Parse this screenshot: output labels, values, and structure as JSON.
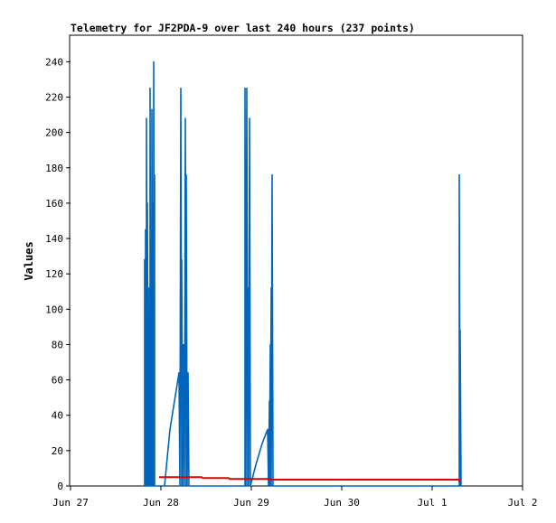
{
  "chart_data": {
    "type": "line",
    "title": "Telemetry for JF2PDA-9 over last 240 hours (237 points)",
    "xlabel": "",
    "ylabel": "Values",
    "ylim": [
      0,
      255
    ],
    "yticks": [
      0,
      20,
      40,
      60,
      80,
      100,
      120,
      140,
      160,
      180,
      200,
      220,
      240
    ],
    "xlim": [
      0,
      5
    ],
    "xticks": [
      {
        "x": 0,
        "label": "Jun 27"
      },
      {
        "x": 1,
        "label": "Jun 28"
      },
      {
        "x": 2,
        "label": "Jun 29"
      },
      {
        "x": 3,
        "label": "Jun 30"
      },
      {
        "x": 4,
        "label": "Jul 1"
      },
      {
        "x": 5,
        "label": "Jul 2"
      }
    ],
    "grid": false,
    "legend": "none",
    "series": [
      {
        "color": "#0066bb",
        "points": [
          [
            0.82,
            0
          ],
          [
            0.82,
            128
          ],
          [
            0.83,
            0
          ],
          [
            0.83,
            145
          ],
          [
            0.84,
            0
          ],
          [
            0.84,
            208
          ],
          [
            0.85,
            0
          ],
          [
            0.85,
            160
          ],
          [
            0.86,
            0
          ],
          [
            0.86,
            80
          ],
          [
            0.87,
            0
          ],
          [
            0.87,
            112
          ],
          [
            0.88,
            0
          ],
          [
            0.88,
            225
          ],
          [
            0.89,
            0
          ],
          [
            0.89,
            96
          ],
          [
            0.9,
            0
          ],
          [
            0.9,
            213
          ],
          [
            0.91,
            0
          ],
          [
            0.91,
            160
          ],
          [
            0.92,
            0
          ],
          [
            0.92,
            240
          ],
          [
            0.93,
            0
          ],
          [
            0.93,
            176
          ],
          [
            0.93,
            0
          ],
          [
            1.04,
            0
          ],
          [
            1.1,
            32
          ],
          [
            1.2,
            64
          ],
          [
            1.21,
            0
          ],
          [
            1.22,
            225
          ],
          [
            1.23,
            0
          ],
          [
            1.23,
            128
          ],
          [
            1.24,
            0
          ],
          [
            1.25,
            80
          ],
          [
            1.26,
            0
          ],
          [
            1.27,
            208
          ],
          [
            1.28,
            0
          ],
          [
            1.28,
            176
          ],
          [
            1.29,
            0
          ],
          [
            1.3,
            64
          ],
          [
            1.31,
            0
          ],
          [
            1.93,
            0
          ],
          [
            1.93,
            225
          ],
          [
            1.94,
            0
          ],
          [
            1.95,
            225
          ],
          [
            1.96,
            0
          ],
          [
            1.96,
            112
          ],
          [
            1.97,
            0
          ],
          [
            1.98,
            208
          ],
          [
            1.99,
            0
          ],
          [
            2.05,
            12
          ],
          [
            2.12,
            24
          ],
          [
            2.18,
            32
          ],
          [
            2.19,
            0
          ],
          [
            2.2,
            48
          ],
          [
            2.2,
            0
          ],
          [
            2.21,
            80
          ],
          [
            2.21,
            0
          ],
          [
            2.22,
            112
          ],
          [
            2.22,
            0
          ],
          [
            2.23,
            176
          ],
          [
            2.24,
            0
          ],
          [
            2.24,
            0
          ],
          [
            4.3,
            0
          ],
          [
            4.3,
            176
          ],
          [
            4.31,
            0
          ],
          [
            4.31,
            88
          ],
          [
            4.32,
            0
          ]
        ]
      },
      {
        "color": "#dd0000",
        "points": [
          [
            0.98,
            5
          ],
          [
            1.45,
            5
          ],
          [
            1.46,
            4.5
          ],
          [
            1.75,
            4.5
          ],
          [
            1.76,
            4
          ],
          [
            2.2,
            4
          ],
          [
            2.21,
            3.6
          ],
          [
            4.3,
            3.6
          ],
          [
            4.3,
            2.4
          ]
        ]
      }
    ]
  }
}
